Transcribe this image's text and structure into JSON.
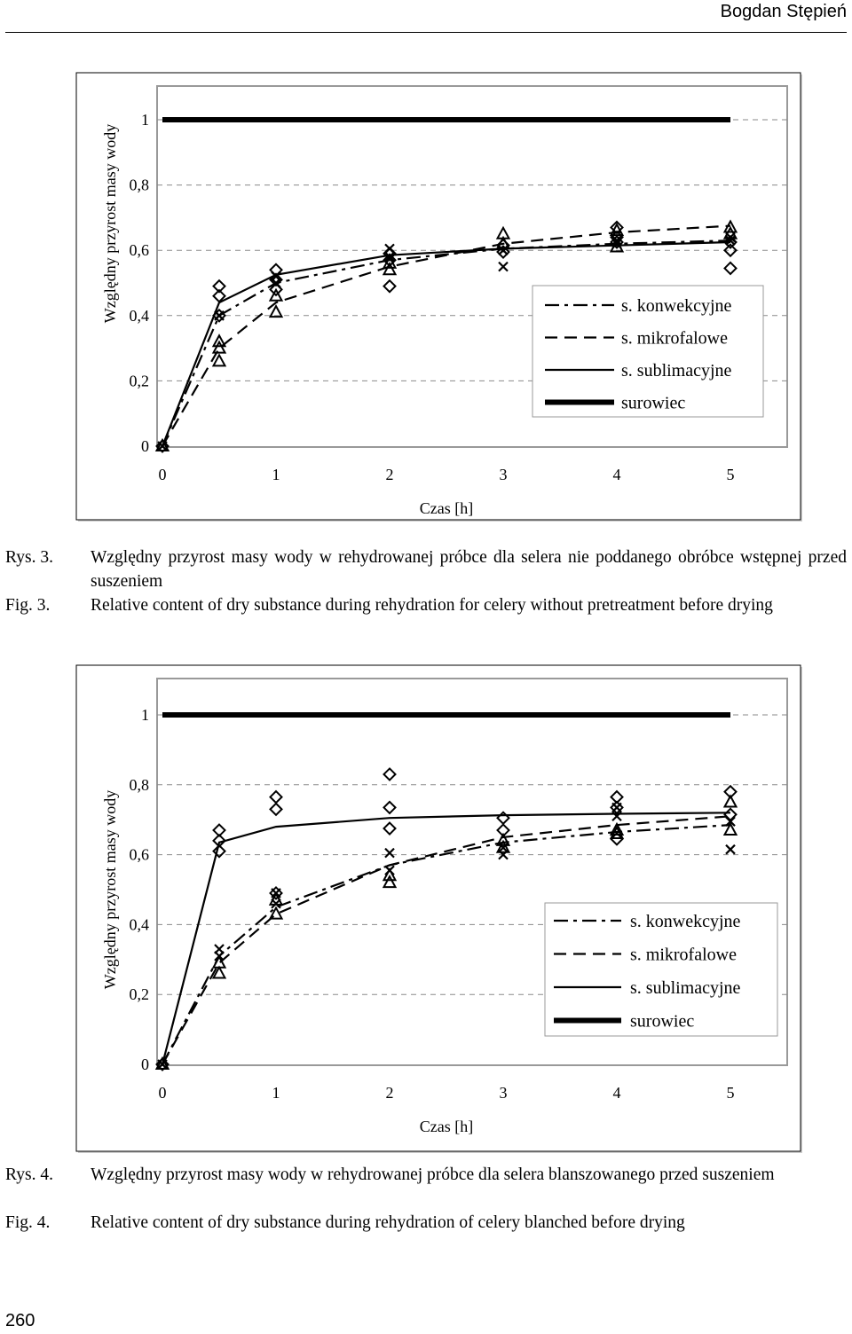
{
  "header": {
    "author": "Bogdan Stępień"
  },
  "page_number": "260",
  "legend_labels": [
    "s. konwekcyjne",
    "s. mikrofalowe",
    "s. sublimacyjne",
    "surowiec"
  ],
  "captions": {
    "fig3": {
      "pl_label": "Rys. 3.",
      "pl_text": "Względny przyrost masy wody w rehydrowanej próbce dla selera nie poddanego obróbce wstępnej przed suszeniem",
      "en_label": "Fig. 3.",
      "en_text": "Relative content of dry substance during rehydration for celery without pretreatment before drying"
    },
    "fig4": {
      "pl_label": "Rys. 4.",
      "pl_text": "Względny przyrost masy wody w rehydrowanej próbce dla selera blanszowanego przed suszeniem",
      "en_label": "Fig. 4.",
      "en_text": "Relative content of dry substance during rehydration of celery blanched before drying"
    }
  },
  "chart_data": [
    {
      "type": "line",
      "xlabel": "Czas [h]",
      "ylabel": "Względny przyrost masy wody",
      "xticks": [
        "0",
        "1",
        "2",
        "3",
        "4",
        "5"
      ],
      "yticks": [
        "0",
        "0,2",
        "0,4",
        "0,6",
        "0,8",
        "1"
      ],
      "xlim": [
        0,
        5
      ],
      "ylim": [
        0,
        1
      ],
      "grid": "horizontal dashed",
      "legend_position": "bottom-right",
      "series": [
        {
          "name": "s. konwekcyjne",
          "style": "dash-dot",
          "marker": "x",
          "x": [
            0,
            0.5,
            1,
            2,
            3,
            4,
            5
          ],
          "y": [
            0,
            0.4,
            0.5,
            0.57,
            0.605,
            0.62,
            0.63
          ],
          "points": [
            [
              0,
              0
            ],
            [
              0.5,
              0.4
            ],
            [
              0.5,
              0.4
            ],
            [
              1,
              0.5
            ],
            [
              1,
              0.52
            ],
            [
              2,
              0.605
            ],
            [
              2,
              0.58
            ],
            [
              3,
              0.6
            ],
            [
              3,
              0.55
            ],
            [
              4,
              0.62
            ],
            [
              4,
              0.63
            ],
            [
              5,
              0.63
            ],
            [
              5,
              0.64
            ]
          ]
        },
        {
          "name": "s. mikrofalowe",
          "style": "dashed",
          "marker": "triangle",
          "x": [
            0,
            0.5,
            1,
            2,
            3,
            4,
            5
          ],
          "y": [
            0,
            0.3,
            0.44,
            0.55,
            0.62,
            0.655,
            0.675
          ],
          "points": [
            [
              0,
              0
            ],
            [
              0.5,
              0.32
            ],
            [
              0.5,
              0.3
            ],
            [
              0.5,
              0.26
            ],
            [
              1,
              0.46
            ],
            [
              1,
              0.41
            ],
            [
              2,
              0.56
            ],
            [
              2,
              0.54
            ],
            [
              3,
              0.65
            ],
            [
              3,
              0.62
            ],
            [
              4,
              0.66
            ],
            [
              4,
              0.61
            ],
            [
              5,
              0.67
            ],
            [
              5,
              0.65
            ]
          ]
        },
        {
          "name": "s. sublimacyjne",
          "style": "solid",
          "marker": "diamond",
          "x": [
            0,
            0.5,
            1,
            2,
            3,
            4,
            5
          ],
          "y": [
            0,
            0.44,
            0.525,
            0.585,
            0.605,
            0.615,
            0.625
          ],
          "points": [
            [
              0,
              0
            ],
            [
              0.5,
              0.49
            ],
            [
              0.5,
              0.46
            ],
            [
              0.5,
              0.4
            ],
            [
              1,
              0.54
            ],
            [
              1,
              0.51
            ],
            [
              1,
              0.48
            ],
            [
              2,
              0.59
            ],
            [
              2,
              0.57
            ],
            [
              2,
              0.49
            ],
            [
              3,
              0.615
            ],
            [
              3,
              0.595
            ],
            [
              4,
              0.67
            ],
            [
              4,
              0.64
            ],
            [
              4,
              0.625
            ],
            [
              5,
              0.625
            ],
            [
              5,
              0.6
            ],
            [
              5,
              0.545
            ]
          ]
        },
        {
          "name": "surowiec",
          "style": "thick solid",
          "marker": "none",
          "x": [
            0,
            5
          ],
          "y": [
            1,
            1
          ]
        }
      ]
    },
    {
      "type": "line",
      "xlabel": "Czas [h]",
      "ylabel": "Względny przyrost masy wody",
      "xticks": [
        "0",
        "1",
        "2",
        "3",
        "4",
        "5"
      ],
      "yticks": [
        "0",
        "0,2",
        "0,4",
        "0,6",
        "0,8",
        "1"
      ],
      "xlim": [
        0,
        5
      ],
      "ylim": [
        0,
        1
      ],
      "grid": "horizontal dashed",
      "legend_position": "bottom-right",
      "series": [
        {
          "name": "s. konwekcyjne",
          "style": "dash-dot",
          "marker": "x",
          "x": [
            0,
            0.5,
            1,
            2,
            3,
            4,
            5
          ],
          "y": [
            0,
            0.31,
            0.45,
            0.57,
            0.635,
            0.665,
            0.685
          ],
          "points": [
            [
              0,
              0
            ],
            [
              0.5,
              0.33
            ],
            [
              0.5,
              0.31
            ],
            [
              1,
              0.49
            ],
            [
              1,
              0.46
            ],
            [
              2,
              0.605
            ],
            [
              2,
              0.555
            ],
            [
              3,
              0.62
            ],
            [
              3,
              0.6
            ],
            [
              4,
              0.735
            ],
            [
              4,
              0.71
            ],
            [
              5,
              0.695
            ],
            [
              5,
              0.615
            ]
          ]
        },
        {
          "name": "s. mikrofalowe",
          "style": "dashed",
          "marker": "triangle",
          "x": [
            0,
            0.5,
            1,
            2,
            3,
            4,
            5
          ],
          "y": [
            0,
            0.29,
            0.43,
            0.57,
            0.65,
            0.685,
            0.71
          ],
          "points": [
            [
              0,
              0
            ],
            [
              0.5,
              0.29
            ],
            [
              0.5,
              0.26
            ],
            [
              1,
              0.47
            ],
            [
              1,
              0.43
            ],
            [
              2,
              0.54
            ],
            [
              2,
              0.52
            ],
            [
              3,
              0.64
            ],
            [
              3,
              0.62
            ],
            [
              4,
              0.67
            ],
            [
              4,
              0.66
            ],
            [
              5,
              0.75
            ],
            [
              5,
              0.67
            ]
          ]
        },
        {
          "name": "s. sublimacyjne",
          "style": "solid",
          "marker": "diamond",
          "x": [
            0,
            0.5,
            1,
            2,
            3,
            4,
            5
          ],
          "y": [
            0,
            0.635,
            0.68,
            0.705,
            0.713,
            0.717,
            0.72
          ],
          "points": [
            [
              0,
              0
            ],
            [
              0.5,
              0.67
            ],
            [
              0.5,
              0.64
            ],
            [
              0.5,
              0.61
            ],
            [
              1,
              0.765
            ],
            [
              1,
              0.73
            ],
            [
              1,
              0.49
            ],
            [
              2,
              0.83
            ],
            [
              2,
              0.735
            ],
            [
              2,
              0.675
            ],
            [
              3,
              0.705
            ],
            [
              3,
              0.67
            ],
            [
              4,
              0.765
            ],
            [
              4,
              0.735
            ],
            [
              4,
              0.645
            ],
            [
              5,
              0.78
            ],
            [
              5,
              0.715
            ]
          ]
        },
        {
          "name": "surowiec",
          "style": "thick solid",
          "marker": "none",
          "x": [
            0,
            5
          ],
          "y": [
            1,
            1
          ]
        }
      ]
    }
  ]
}
